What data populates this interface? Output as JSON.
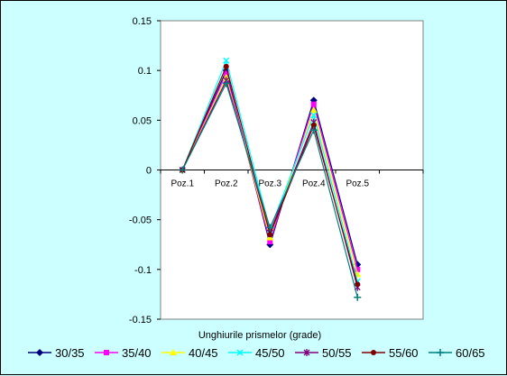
{
  "chart_data": {
    "type": "line",
    "xlabel": "Unghiurile prismelor (grade)",
    "categories": [
      "Poz.1",
      "Poz.2",
      "Poz.3",
      "Poz.4",
      "Poz.5"
    ],
    "ylim": [
      -0.15,
      0.15
    ],
    "yticks": [
      "0.15",
      "0.1",
      "0.05",
      "0",
      "-0.05",
      "-0.1",
      "-0.15"
    ],
    "grid": false,
    "legend_position": "bottom",
    "series": [
      {
        "name": "30/35",
        "color": "#000080",
        "marker": "diamond",
        "values": [
          0,
          0.1,
          -0.075,
          0.07,
          -0.095
        ]
      },
      {
        "name": "35/40",
        "color": "#ff00ff",
        "marker": "square",
        "values": [
          0,
          0.097,
          -0.072,
          0.066,
          -0.1
        ]
      },
      {
        "name": "40/45",
        "color": "#ffff00",
        "marker": "triangle",
        "values": [
          0,
          0.093,
          -0.068,
          0.06,
          -0.105
        ]
      },
      {
        "name": "45/50",
        "color": "#00ffff",
        "marker": "x",
        "values": [
          0,
          0.11,
          -0.06,
          0.055,
          -0.112
        ]
      },
      {
        "name": "50/55",
        "color": "#800080",
        "marker": "star",
        "values": [
          0,
          0.09,
          -0.063,
          0.048,
          -0.118
        ]
      },
      {
        "name": "55/60",
        "color": "#800000",
        "marker": "circle",
        "values": [
          0,
          0.104,
          -0.065,
          0.045,
          -0.115
        ]
      },
      {
        "name": "60/65",
        "color": "#008080",
        "marker": "plus",
        "values": [
          0,
          0.087,
          -0.058,
          0.04,
          -0.128
        ]
      }
    ]
  }
}
